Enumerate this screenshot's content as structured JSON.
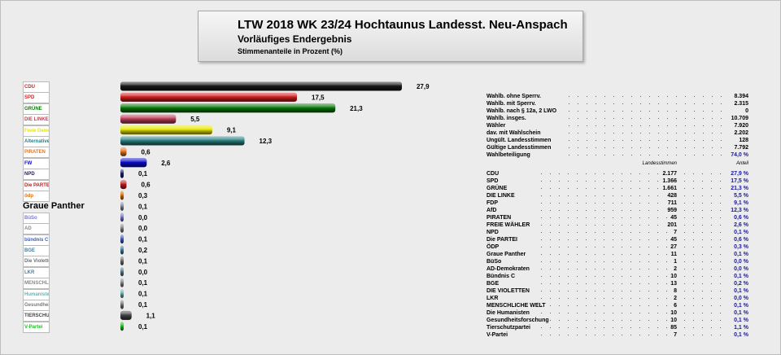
{
  "title": "LTW 2018 WK 23/24 Hochtaunus Landesst. Neu-Anspach",
  "subtitle": "Vorläufiges Endergebnis",
  "subtitle2": "Stimmenanteile in Prozent (%)",
  "chart_data": {
    "type": "bar",
    "orientation": "horizontal",
    "categories": [
      "CDU",
      "SPD",
      "GRÜNE",
      "DIE LINKE",
      "FDP",
      "AfD",
      "PIRATEN",
      "FREIE WÄHLER",
      "NPD",
      "Die PARTEI",
      "ÖDP",
      "Graue Panther",
      "BüSo",
      "AD-Demokraten",
      "Bündnis C",
      "BGE",
      "DIE VIOLETTEN",
      "LKR",
      "MENSCHLICHE WELT",
      "Die Humanisten",
      "Gesundheitsforschung",
      "Tierschutzpartei",
      "V-Partei"
    ],
    "values": [
      27.9,
      17.5,
      21.3,
      5.5,
      9.1,
      12.3,
      0.6,
      2.6,
      0.1,
      0.6,
      0.3,
      0.1,
      0.0,
      0.0,
      0.1,
      0.2,
      0.1,
      0.0,
      0.1,
      0.1,
      0.1,
      1.1,
      0.1
    ],
    "value_labels": [
      "27,9",
      "17,5",
      "21,3",
      "5,5",
      "9,1",
      "12,3",
      "0,6",
      "2,6",
      "0,1",
      "0,6",
      "0,3",
      "0,1",
      "0,0",
      "0,0",
      "0,1",
      "0,2",
      "0,1",
      "0,0",
      "0,1",
      "0,1",
      "0,1",
      "1,1",
      "0,1"
    ],
    "colors": [
      "#1a1a1a",
      "#d42020",
      "#0a7a0a",
      "#c0405a",
      "#e6e600",
      "#2a8080",
      "#e07820",
      "#0a0ad0",
      "#20206a",
      "#c02020",
      "#e07000",
      "#8a8aa0",
      "#7a7ad0",
      "#8a8a8a",
      "#4060c0",
      "#4080a0",
      "#707070",
      "#5a7a90",
      "#8a8a8a",
      "#70b0b0",
      "#7a7a7a",
      "#444444",
      "#20c020"
    ],
    "xlim": [
      0,
      30
    ],
    "grid": false,
    "legend": "none"
  },
  "logos": [
    "CDU",
    "SPD",
    "GRÜNE",
    "DIE LINKE.",
    "Freie Demokraten",
    "Alternative",
    "PIRATEN",
    "FW",
    "NPD",
    "Die PARTEI",
    "ödp",
    "Graue Panther",
    "BüSo",
    "AD",
    "bündnis C",
    "BGE",
    "Die Violetten",
    "LKR",
    "MENSCHLICHE WELT",
    "Humanisten",
    "Gesundheitsforschung",
    "TIERSCHUTZ",
    "V-Partei"
  ],
  "stats": [
    {
      "label": "Wahlb. ohne Sperrv.",
      "value": "8.394"
    },
    {
      "label": "Wahlb. mit Sperrv.",
      "value": "2.315"
    },
    {
      "label": "Wahlb. nach § 12a, 2 LWO",
      "value": "0"
    },
    {
      "label": "Wahlb. insges.",
      "value": "10.709"
    },
    {
      "label": "Wähler",
      "value": "7.920"
    },
    {
      "label": "dav. mit Wahlschein",
      "value": "2.202"
    },
    {
      "label": "Ungült. Landesstimmen",
      "value": "128"
    },
    {
      "label": "Gültige Landesstimmen",
      "value": "7.792"
    },
    {
      "label": "Wahlbeteiligung",
      "value": "74,0 %"
    }
  ],
  "results_head": {
    "votes": "Landesstimmen",
    "share": "Anteil"
  },
  "results": [
    {
      "party": "CDU",
      "votes": "2.177",
      "pct": "27,9 %"
    },
    {
      "party": "SPD",
      "votes": "1.366",
      "pct": "17,5 %"
    },
    {
      "party": "GRÜNE",
      "votes": "1.661",
      "pct": "21,3 %"
    },
    {
      "party": "DIE LINKE",
      "votes": "428",
      "pct": "5,5 %"
    },
    {
      "party": "FDP",
      "votes": "711",
      "pct": "9,1 %"
    },
    {
      "party": "AfD",
      "votes": "959",
      "pct": "12,3 %"
    },
    {
      "party": "PIRATEN",
      "votes": "45",
      "pct": "0,6 %"
    },
    {
      "party": "FREIE WÄHLER",
      "votes": "201",
      "pct": "2,6 %"
    },
    {
      "party": "NPD",
      "votes": "7",
      "pct": "0,1 %"
    },
    {
      "party": "Die PARTEI",
      "votes": "45",
      "pct": "0,6 %"
    },
    {
      "party": "ÖDP",
      "votes": "27",
      "pct": "0,3 %"
    },
    {
      "party": "Graue Panther",
      "votes": "11",
      "pct": "0,1 %"
    },
    {
      "party": "BüSo",
      "votes": "1",
      "pct": "0,0 %"
    },
    {
      "party": "AD-Demokraten",
      "votes": "2",
      "pct": "0,0 %"
    },
    {
      "party": "Bündnis C",
      "votes": "10",
      "pct": "0,1 %"
    },
    {
      "party": "BGE",
      "votes": "13",
      "pct": "0,2 %"
    },
    {
      "party": "DIE VIOLETTEN",
      "votes": "8",
      "pct": "0,1 %"
    },
    {
      "party": "LKR",
      "votes": "2",
      "pct": "0,0 %"
    },
    {
      "party": "MENSCHLICHE WELT",
      "votes": "6",
      "pct": "0,1 %"
    },
    {
      "party": "Die Humanisten",
      "votes": "10",
      "pct": "0,1 %"
    },
    {
      "party": "Gesundheitsforschung",
      "votes": "10",
      "pct": "0,1 %"
    },
    {
      "party": "Tierschutzpartei",
      "votes": "85",
      "pct": "1,1 %"
    },
    {
      "party": "V-Partei",
      "votes": "7",
      "pct": "0,1 %"
    }
  ]
}
